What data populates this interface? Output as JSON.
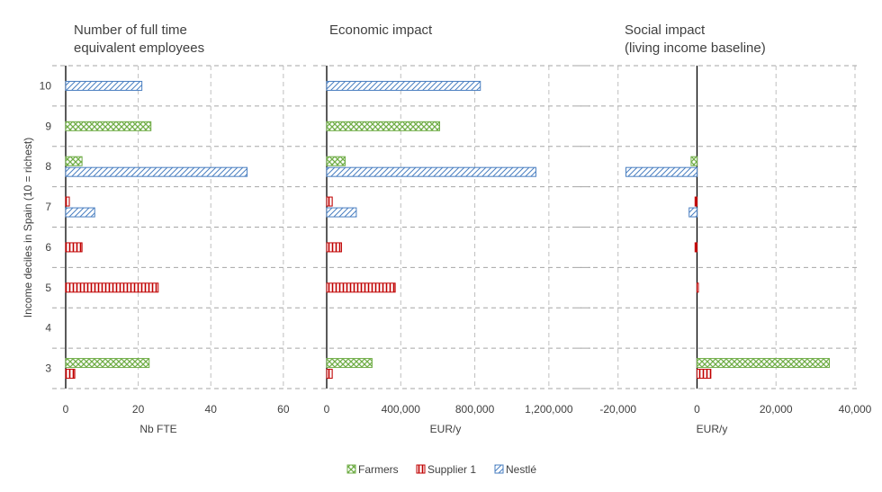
{
  "chart_data": {
    "type": "bar",
    "orientation": "horizontal",
    "y_axis_label": "Income deciles in Spain (10 = richest)",
    "deciles": [
      "10",
      "9",
      "8",
      "7",
      "6",
      "5",
      "4",
      "3"
    ],
    "legend": {
      "placement": "bottom-center",
      "entries": [
        {
          "name": "Farmers",
          "color": "#70ad47",
          "pattern": "crosshatch"
        },
        {
          "name": "Supplier 1",
          "color": "#c00000",
          "pattern": "vertical"
        },
        {
          "name": "Nestlé",
          "color": "#4a7fc1",
          "pattern": "diagonal"
        }
      ]
    },
    "panels": [
      {
        "title": [
          "Number of full time",
          "equivalent employees"
        ],
        "xlabel": "Nb FTE",
        "xlim": [
          0,
          65
        ],
        "ticks": [
          0,
          20,
          40,
          60
        ],
        "tick_labels": [
          "0",
          "20",
          "40",
          "60"
        ],
        "grid": true,
        "series": [
          {
            "name": "Farmers",
            "values": {
              "9": 23.5,
              "8": 4.5,
              "3": 23
            }
          },
          {
            "name": "Supplier 1",
            "values": {
              "7": 1,
              "6": 4.5,
              "5": 25.5,
              "3": 2.5
            }
          },
          {
            "name": "Nestlé",
            "values": {
              "10": 21,
              "8": 50,
              "7": 8
            }
          }
        ]
      },
      {
        "title": [
          "Economic impact"
        ],
        "xlabel": "EUR/y",
        "xlim": [
          0,
          1400000
        ],
        "ticks": [
          0,
          400000,
          800000,
          1200000
        ],
        "tick_labels": [
          "0",
          "400,000",
          "800,000",
          "1,200,000"
        ],
        "grid": true,
        "series": [
          {
            "name": "Farmers",
            "values": {
              "9": 610000,
              "8": 100000,
              "3": 245000
            }
          },
          {
            "name": "Supplier 1",
            "values": {
              "7": 30000,
              "6": 80000,
              "5": 370000,
              "3": 30000
            }
          },
          {
            "name": "Nestlé",
            "values": {
              "10": 830000,
              "8": 1130000,
              "7": 160000
            }
          }
        ]
      },
      {
        "title": [
          "Social impact",
          "(living income baseline)"
        ],
        "xlabel": "EUR/y",
        "xlim": [
          -27000,
          40000
        ],
        "ticks": [
          -20000,
          0,
          20000,
          40000
        ],
        "tick_labels": [
          "-20,000",
          "0",
          "20,000",
          "40,000"
        ],
        "grid": true,
        "series": [
          {
            "name": "Farmers",
            "values": {
              "8": -1500,
              "3": 33500
            }
          },
          {
            "name": "Supplier 1",
            "values": {
              "7": -500,
              "6": -500,
              "5": 300,
              "3": 3500
            }
          },
          {
            "name": "Nestlé",
            "values": {
              "8": -18000,
              "7": -2000
            }
          }
        ]
      }
    ]
  }
}
